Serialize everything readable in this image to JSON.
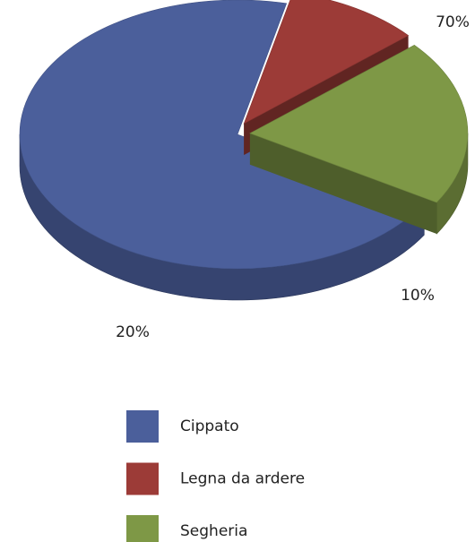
{
  "chart_data": {
    "type": "pie",
    "categories": [
      "Cippato",
      "Legna da ardere",
      "Segheria"
    ],
    "values": [
      70,
      10,
      20
    ],
    "value_labels": [
      "70%",
      "10%",
      "20%"
    ],
    "colors": [
      "#4b5f9b",
      "#9c3b37",
      "#7e9846"
    ],
    "legend": "bottom"
  }
}
